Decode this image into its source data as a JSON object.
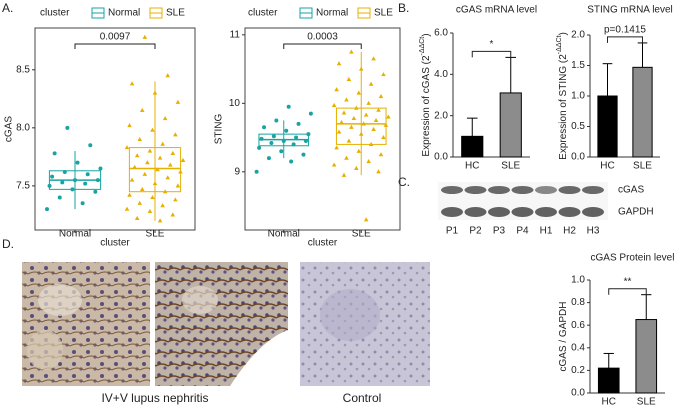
{
  "panels": {
    "a": "A.",
    "b": "B.",
    "c": "C.",
    "d": "D."
  },
  "chart_data": [
    {
      "type": "box",
      "legend_title": "cluster",
      "ylabel": "cGAS",
      "xlabel": "cluster",
      "categories": [
        "Normal",
        "SLE"
      ],
      "colors": [
        "#1aa3a3",
        "#e6b000"
      ],
      "boxes": [
        {
          "min": 7.3,
          "q1": 7.47,
          "median": 7.55,
          "q3": 7.63,
          "max": 7.8
        },
        {
          "min": 7.2,
          "q1": 7.45,
          "median": 7.65,
          "q3": 7.83,
          "max": 8.4
        }
      ],
      "points": [
        [
          7.3,
          7.35,
          7.4,
          7.45,
          7.47,
          7.5,
          7.52,
          7.53,
          7.55,
          7.55,
          7.58,
          7.6,
          7.62,
          7.65,
          7.7,
          7.78,
          7.85,
          8.0
        ],
        [
          7.2,
          7.22,
          7.25,
          7.28,
          7.3,
          7.33,
          7.35,
          7.38,
          7.4,
          7.42,
          7.45,
          7.47,
          7.5,
          7.52,
          7.55,
          7.57,
          7.6,
          7.62,
          7.64,
          7.66,
          7.68,
          7.7,
          7.72,
          7.74,
          7.76,
          7.78,
          7.8,
          7.83,
          7.86,
          7.9,
          7.94,
          7.98,
          8.02,
          8.08,
          8.15,
          8.22,
          8.3,
          8.38,
          8.45,
          8.78
        ]
      ],
      "annotation": "0.0097",
      "ylim": [
        7.12,
        8.86
      ],
      "yticks": [
        7.5,
        {
          "value": 8,
          "label": "8.0"
        },
        8.5
      ]
    },
    {
      "type": "box",
      "legend_title": "cluster",
      "ylabel": "STING",
      "xlabel": "cluster",
      "categories": [
        "Normal",
        "SLE"
      ],
      "colors": [
        "#1aa3a3",
        "#e6b000"
      ],
      "boxes": [
        {
          "min": 9.2,
          "q1": 9.38,
          "median": 9.47,
          "q3": 9.55,
          "max": 9.75
        },
        {
          "min": 8.95,
          "q1": 9.4,
          "median": 9.7,
          "q3": 9.93,
          "max": 10.75
        }
      ],
      "points": [
        [
          9.0,
          9.15,
          9.2,
          9.25,
          9.3,
          9.35,
          9.4,
          9.42,
          9.45,
          9.45,
          9.48,
          9.5,
          9.52,
          9.55,
          9.6,
          9.65,
          9.7,
          9.75,
          9.85,
          9.95
        ],
        [
          8.3,
          8.95,
          9.0,
          9.05,
          9.1,
          9.15,
          9.2,
          9.25,
          9.3,
          9.35,
          9.4,
          9.45,
          9.5,
          9.55,
          9.58,
          9.62,
          9.65,
          9.68,
          9.7,
          9.72,
          9.75,
          9.78,
          9.8,
          9.83,
          9.86,
          9.9,
          9.93,
          9.97,
          10.0,
          10.05,
          10.1,
          10.15,
          10.2,
          10.28,
          10.35,
          10.42,
          10.5,
          10.58,
          10.65,
          10.75
        ]
      ],
      "annotation": "0.0003",
      "ylim": [
        8.15,
        11.1
      ],
      "yticks": [
        9,
        10,
        11
      ]
    },
    {
      "type": "bar",
      "title": "cGAS mRNA level",
      "ylabel": "Expression of cGAS (2",
      "ylabel_sup": "-ΔΔCt",
      "ylabel_end": ")",
      "categories": [
        "HC",
        "SLE"
      ],
      "values": [
        1.0,
        3.1
      ],
      "errors": [
        0.88,
        1.72
      ],
      "colors": [
        "#000000",
        "#8c8c8c"
      ],
      "annotation": "*",
      "ylim": [
        0,
        6
      ],
      "yticks": [
        {
          "value": 0,
          "label": "0.0"
        },
        {
          "value": 2,
          "label": "2.0"
        },
        {
          "value": 4,
          "label": "4.0"
        },
        {
          "value": 6,
          "label": "6.0"
        }
      ]
    },
    {
      "type": "bar",
      "title": "STING mRNA level",
      "ylabel": "Expression of STING (2",
      "ylabel_sup": "-ΔΔCt",
      "ylabel_end": ")",
      "categories": [
        "HC",
        "SLE"
      ],
      "values": [
        1.0,
        1.47
      ],
      "errors": [
        0.53,
        0.4
      ],
      "colors": [
        "#000000",
        "#8c8c8c"
      ],
      "annotation": "p=0.1415",
      "ylim": [
        0,
        2
      ],
      "yticks": [
        {
          "value": 0,
          "label": "0.0"
        },
        0.5,
        {
          "value": 1,
          "label": "1.0"
        },
        1.5,
        {
          "value": 2,
          "label": "2.0"
        }
      ]
    },
    {
      "type": "bar",
      "title": "cGAS Protein level",
      "ylabel": "cGAS / GAPDH",
      "categories": [
        "HC",
        "SLE"
      ],
      "values": [
        0.22,
        0.65
      ],
      "errors": [
        0.13,
        0.22
      ],
      "colors": [
        "#000000",
        "#8c8c8c"
      ],
      "annotation": "**",
      "ylim": [
        0,
        1
      ],
      "yticks": [
        {
          "value": 0,
          "label": "0.0"
        },
        0.2,
        0.4,
        0.6,
        0.8,
        {
          "value": 1,
          "label": "1.0"
        }
      ]
    }
  ],
  "blot": {
    "lanes": [
      "P1",
      "P2",
      "P3",
      "P4",
      "H1",
      "H2",
      "H3"
    ],
    "rows": [
      "cGAS",
      "GAPDH"
    ]
  },
  "histology": {
    "captions": [
      "IV+V lupus nephritis",
      "Control"
    ]
  }
}
